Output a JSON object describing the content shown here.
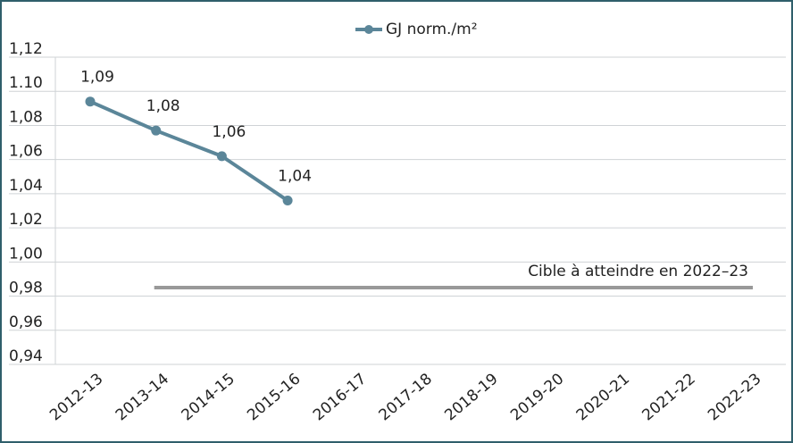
{
  "chart_data": {
    "type": "line",
    "categories": [
      "2012-13",
      "2013-14",
      "2014-15",
      "2015-16",
      "2016-17",
      "2017-18",
      "2018-19",
      "2019-20",
      "2020-21",
      "2021-22",
      "2022-23"
    ],
    "series": [
      {
        "name": "GJ norm./m²",
        "color": "#5b8699",
        "values": [
          1.094,
          1.077,
          1.062,
          1.036,
          null,
          null,
          null,
          null,
          null,
          null,
          null
        ],
        "value_labels": [
          "1,09",
          "1,08",
          "1,06",
          "1,04",
          null,
          null,
          null,
          null,
          null,
          null,
          null
        ]
      }
    ],
    "ylim": [
      0.94,
      1.12
    ],
    "yticks": [
      {
        "value": 0.94,
        "label": "0,94"
      },
      {
        "value": 0.96,
        "label": "0,96"
      },
      {
        "value": 0.98,
        "label": "0,98"
      },
      {
        "value": 1.0,
        "label": "1,00"
      },
      {
        "value": 1.02,
        "label": "1,02"
      },
      {
        "value": 1.04,
        "label": "1,04"
      },
      {
        "value": 1.06,
        "label": "1,06"
      },
      {
        "value": 1.08,
        "label": "1,08"
      },
      {
        "value": 1.1,
        "label": "1.10"
      },
      {
        "value": 1.12,
        "label": "1,12"
      }
    ],
    "grid": true,
    "legend": "top",
    "target": {
      "value": 0.985,
      "label": "Cible à atteindre en 2022–23",
      "color": "#999999"
    }
  }
}
